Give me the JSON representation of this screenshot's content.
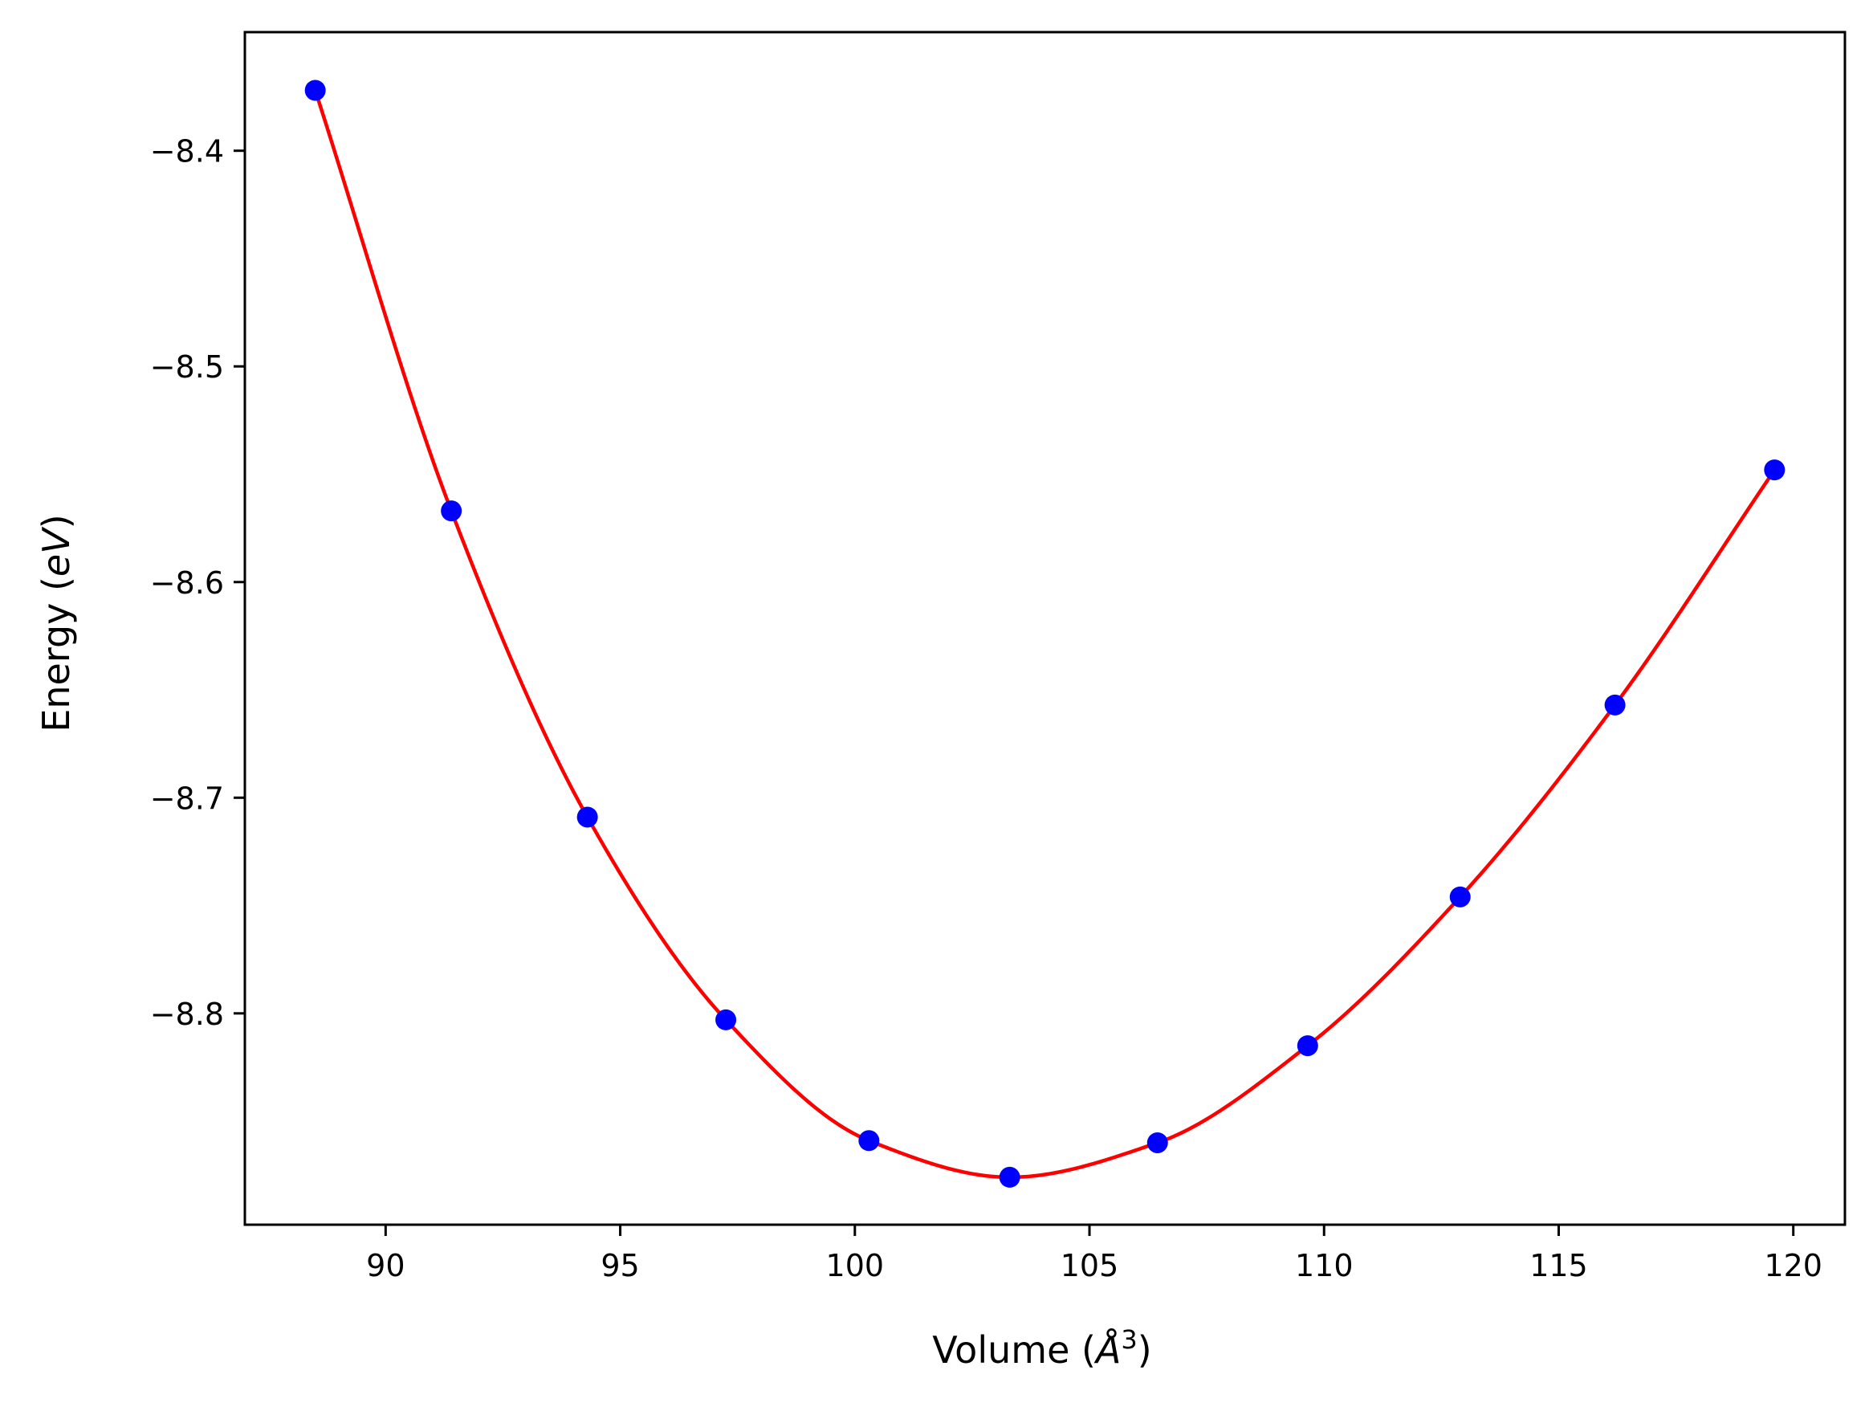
{
  "chart_data": {
    "type": "scatter",
    "xlabel": "Volume (",
    "xlabel_italic": "Å",
    "xlabel_sup": "3",
    "xlabel_close": ")",
    "ylabel": "Energy (",
    "ylabel_italic": "eV",
    "ylabel_close": ")",
    "xlim": [
      87.0,
      121.1
    ],
    "ylim": [
      -8.898,
      -8.345
    ],
    "xticks": [
      90,
      95,
      100,
      105,
      110,
      115,
      120
    ],
    "xtick_labels": [
      "90",
      "95",
      "100",
      "105",
      "110",
      "115",
      "120"
    ],
    "yticks": [
      -8.4,
      -8.5,
      -8.6,
      -8.7,
      -8.8
    ],
    "ytick_labels": [
      "−8.4",
      "−8.5",
      "−8.6",
      "−8.7",
      "−8.8"
    ],
    "grid": false,
    "series": [
      {
        "kind": "points",
        "color": "#0000ff",
        "x": [
          88.5,
          91.4,
          94.3,
          97.25,
          100.3,
          103.3,
          106.45,
          109.65,
          112.9,
          116.2,
          119.6
        ],
        "y": [
          -8.372,
          -8.567,
          -8.709,
          -8.803,
          -8.859,
          -8.876,
          -8.86,
          -8.815,
          -8.746,
          -8.657,
          -8.548
        ]
      },
      {
        "kind": "fit-curve",
        "color": "#ff0000",
        "x": [
          88.5,
          91.4,
          94.3,
          97.25,
          100.3,
          103.3,
          106.45,
          109.65,
          112.9,
          116.2,
          119.6
        ],
        "y": [
          -8.372,
          -8.567,
          -8.709,
          -8.803,
          -8.859,
          -8.876,
          -8.86,
          -8.815,
          -8.746,
          -8.657,
          -8.548
        ]
      }
    ]
  }
}
